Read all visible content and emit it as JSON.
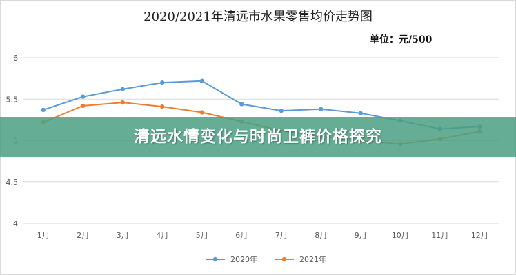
{
  "chart_data": {
    "type": "line",
    "title": "2020/2021年清远市水果零售均价走势图",
    "unit_label": "单位：元/500",
    "categories": [
      "1月",
      "2月",
      "3月",
      "4月",
      "5月",
      "6月",
      "7月",
      "8月",
      "9月",
      "10月",
      "11月",
      "12月"
    ],
    "ylim": [
      4,
      6
    ],
    "yticks": [
      "4",
      "4.5",
      "5",
      "5.5",
      "6"
    ],
    "grid": true,
    "legend_position": "bottom",
    "series": [
      {
        "name": "2020年",
        "color": "#5b9bd5",
        "values": [
          5.37,
          5.53,
          5.62,
          5.7,
          5.72,
          5.44,
          5.36,
          5.38,
          5.33,
          5.24,
          5.14,
          5.17
        ]
      },
      {
        "name": "2021年",
        "color": "#ed7d31",
        "values": [
          5.22,
          5.42,
          5.46,
          5.41,
          5.34,
          5.23,
          5.12,
          5.05,
          5.0,
          4.96,
          5.02,
          5.11
        ]
      }
    ]
  },
  "overlay": {
    "banner_text": "清远水情变化与时尚卫裤价格探究"
  }
}
